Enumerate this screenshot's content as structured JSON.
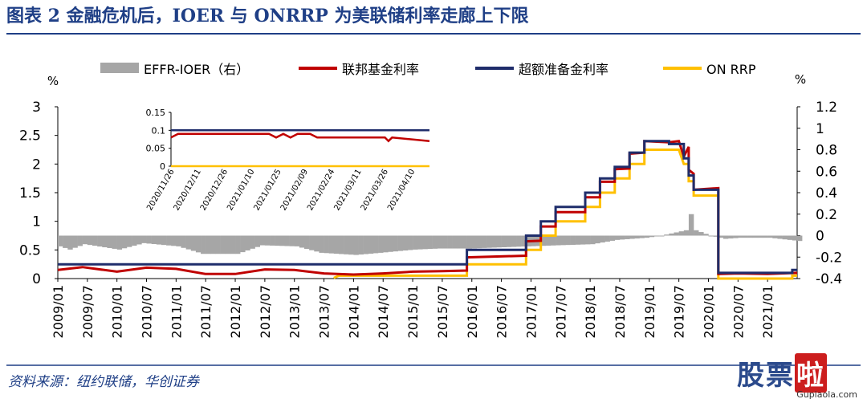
{
  "figure": {
    "title": "图表 2   金融危机后，IOER 与 ONRRP 为美联储利率走廊上下限",
    "source": "资料来源：纽约联储，华创证券",
    "watermark": {
      "cn_part1": "股票",
      "cn_part2": "啦",
      "en": "Gupiaola.com"
    },
    "colors": {
      "title": "#1f3f86",
      "rule": "#1f3f86"
    }
  },
  "chart_data": [
    {
      "id": "main",
      "type": "line",
      "left_unit": "%",
      "right_unit": "%",
      "left_ylim": [
        0,
        3
      ],
      "left_yticks": [
        "0",
        "0.5",
        "1",
        "1.5",
        "2",
        "2.5",
        "3"
      ],
      "right_ylim": [
        -0.4,
        1.2
      ],
      "right_yticks": [
        "-0.4",
        "-0.2",
        "0",
        "0.2",
        "0.4",
        "0.6",
        "0.8",
        "1",
        "1.2"
      ],
      "x_range": [
        "2009-01",
        "2021-07"
      ],
      "x_ticks": [
        "2009/01",
        "2009/07",
        "2010/01",
        "2010/07",
        "2011/01",
        "2011/07",
        "2012/01",
        "2012/07",
        "2013/01",
        "2013/07",
        "2014/01",
        "2014/07",
        "2015/01",
        "2015/07",
        "2016/01",
        "2016/07",
        "2017/01",
        "2017/07",
        "2018/01",
        "2018/07",
        "2019/01",
        "2019/07",
        "2020/01",
        "2020/07",
        "2021/01"
      ],
      "legend": [
        {
          "label": "EFFR-IOER（右）",
          "color": "#a6a6a6",
          "kind": "bar"
        },
        {
          "label": "联邦基金利率",
          "color": "#c00000",
          "kind": "line"
        },
        {
          "label": "超额准备金利率",
          "color": "#1f2d6b",
          "kind": "line"
        },
        {
          "label": "ON RRP",
          "color": "#ffc000",
          "kind": "line"
        }
      ],
      "series": [
        {
          "name": "超额准备金利率",
          "axis": "left",
          "points": [
            [
              "2009-01",
              0.25
            ],
            [
              "2015-12",
              0.25
            ],
            [
              "2015-12",
              0.5
            ],
            [
              "2016-12",
              0.5
            ],
            [
              "2016-12",
              0.75
            ],
            [
              "2017-03",
              0.75
            ],
            [
              "2017-03",
              1.0
            ],
            [
              "2017-06",
              1.0
            ],
            [
              "2017-06",
              1.25
            ],
            [
              "2017-12",
              1.25
            ],
            [
              "2017-12",
              1.5
            ],
            [
              "2018-03",
              1.5
            ],
            [
              "2018-03",
              1.75
            ],
            [
              "2018-06",
              1.75
            ],
            [
              "2018-06",
              1.95
            ],
            [
              "2018-09",
              1.95
            ],
            [
              "2018-09",
              2.2
            ],
            [
              "2018-12",
              2.2
            ],
            [
              "2018-12",
              2.4
            ],
            [
              "2019-05",
              2.4
            ],
            [
              "2019-05",
              2.35
            ],
            [
              "2019-08",
              2.35
            ],
            [
              "2019-08",
              2.1
            ],
            [
              "2019-09",
              2.1
            ],
            [
              "2019-09",
              1.8
            ],
            [
              "2019-10",
              1.8
            ],
            [
              "2019-10",
              1.55
            ],
            [
              "2020-03",
              1.55
            ],
            [
              "2020-03",
              1.1
            ],
            [
              "2020-03",
              0.1
            ],
            [
              "2021-06",
              0.1
            ],
            [
              "2021-06",
              0.15
            ],
            [
              "2021-07",
              0.15
            ]
          ]
        },
        {
          "name": "联邦基金利率",
          "axis": "left",
          "points": [
            [
              "2009-01",
              0.15
            ],
            [
              "2009-06",
              0.2
            ],
            [
              "2010-01",
              0.12
            ],
            [
              "2010-07",
              0.19
            ],
            [
              "2011-01",
              0.17
            ],
            [
              "2011-07",
              0.08
            ],
            [
              "2012-01",
              0.08
            ],
            [
              "2012-07",
              0.16
            ],
            [
              "2013-01",
              0.15
            ],
            [
              "2013-07",
              0.09
            ],
            [
              "2014-01",
              0.07
            ],
            [
              "2014-07",
              0.09
            ],
            [
              "2015-01",
              0.12
            ],
            [
              "2015-07",
              0.13
            ],
            [
              "2015-12",
              0.14
            ],
            [
              "2015-12",
              0.37
            ],
            [
              "2016-12",
              0.4
            ],
            [
              "2016-12",
              0.65
            ],
            [
              "2017-03",
              0.66
            ],
            [
              "2017-03",
              0.91
            ],
            [
              "2017-06",
              0.91
            ],
            [
              "2017-06",
              1.16
            ],
            [
              "2017-12",
              1.16
            ],
            [
              "2017-12",
              1.42
            ],
            [
              "2018-03",
              1.42
            ],
            [
              "2018-03",
              1.69
            ],
            [
              "2018-06",
              1.69
            ],
            [
              "2018-06",
              1.91
            ],
            [
              "2018-09",
              1.92
            ],
            [
              "2018-09",
              2.18
            ],
            [
              "2018-12",
              2.2
            ],
            [
              "2018-12",
              2.4
            ],
            [
              "2019-05",
              2.38
            ],
            [
              "2019-07",
              2.4
            ],
            [
              "2019-08",
              2.13
            ],
            [
              "2019-09",
              2.3
            ],
            [
              "2019-09",
              1.9
            ],
            [
              "2019-10",
              1.83
            ],
            [
              "2019-10",
              1.55
            ],
            [
              "2020-03",
              1.58
            ],
            [
              "2020-03",
              1.1
            ],
            [
              "2020-03",
              0.65
            ],
            [
              "2020-03",
              0.08
            ],
            [
              "2020-07",
              0.09
            ],
            [
              "2021-01",
              0.08
            ],
            [
              "2021-07",
              0.1
            ]
          ]
        },
        {
          "name": "ON RRP",
          "axis": "left",
          "points": [
            [
              "2013-09",
              0.01
            ],
            [
              "2013-10",
              0.05
            ],
            [
              "2014-06",
              0.05
            ],
            [
              "2015-06",
              0.05
            ],
            [
              "2015-12",
              0.05
            ],
            [
              "2015-12",
              0.25
            ],
            [
              "2016-12",
              0.25
            ],
            [
              "2016-12",
              0.5
            ],
            [
              "2017-03",
              0.5
            ],
            [
              "2017-03",
              0.75
            ],
            [
              "2017-06",
              0.75
            ],
            [
              "2017-06",
              1.0
            ],
            [
              "2017-12",
              1.0
            ],
            [
              "2017-12",
              1.25
            ],
            [
              "2018-03",
              1.25
            ],
            [
              "2018-03",
              1.5
            ],
            [
              "2018-06",
              1.5
            ],
            [
              "2018-06",
              1.75
            ],
            [
              "2018-09",
              1.75
            ],
            [
              "2018-09",
              2.0
            ],
            [
              "2018-12",
              2.0
            ],
            [
              "2018-12",
              2.25
            ],
            [
              "2019-06",
              2.25
            ],
            [
              "2019-07",
              2.25
            ],
            [
              "2019-08",
              2.0
            ],
            [
              "2019-09",
              2.0
            ],
            [
              "2019-09",
              1.7
            ],
            [
              "2019-10",
              1.7
            ],
            [
              "2019-10",
              1.45
            ],
            [
              "2020-03",
              1.45
            ],
            [
              "2020-03",
              1.0
            ],
            [
              "2020-03",
              0.0
            ],
            [
              "2021-06",
              0.0
            ],
            [
              "2021-06",
              0.05
            ],
            [
              "2021-07",
              0.05
            ]
          ]
        },
        {
          "name": "EFFR-IOER（右）",
          "axis": "right",
          "kind": "bar",
          "points": [
            [
              "2009-01",
              -0.1
            ],
            [
              "2009-03",
              -0.13
            ],
            [
              "2009-06",
              -0.08
            ],
            [
              "2010-01",
              -0.13
            ],
            [
              "2010-06",
              -0.07
            ],
            [
              "2011-01",
              -0.1
            ],
            [
              "2011-06",
              -0.17
            ],
            [
              "2012-01",
              -0.17
            ],
            [
              "2012-06",
              -0.09
            ],
            [
              "2013-01",
              -0.1
            ],
            [
              "2013-06",
              -0.16
            ],
            [
              "2014-01",
              -0.18
            ],
            [
              "2014-06",
              -0.16
            ],
            [
              "2015-01",
              -0.13
            ],
            [
              "2015-06",
              -0.12
            ],
            [
              "2015-12",
              -0.12
            ],
            [
              "2016-12",
              -0.1
            ],
            [
              "2017-06",
              -0.09
            ],
            [
              "2018-01",
              -0.08
            ],
            [
              "2018-06",
              -0.04
            ],
            [
              "2018-12",
              -0.02
            ],
            [
              "2019-03",
              0.0
            ],
            [
              "2019-06",
              0.03
            ],
            [
              "2019-08",
              0.05
            ],
            [
              "2019-09",
              0.2
            ],
            [
              "2019-10",
              0.05
            ],
            [
              "2020-01",
              0.0
            ],
            [
              "2020-03",
              -0.02
            ],
            [
              "2020-04",
              -0.03
            ],
            [
              "2020-07",
              -0.02
            ],
            [
              "2021-01",
              -0.02
            ],
            [
              "2021-07",
              -0.05
            ]
          ]
        }
      ]
    },
    {
      "id": "inset",
      "type": "line",
      "ylim": [
        0,
        0.15
      ],
      "yticks": [
        "0",
        "0.05",
        "0.1",
        "0.15"
      ],
      "x_range": [
        "2020-11-26",
        "2021-04-20"
      ],
      "x_ticks": [
        "2020/11/26",
        "2020/12/11",
        "2020/12/26",
        "2021/01/10",
        "2021/01/25",
        "2021/02/09",
        "2021/02/24",
        "2021/03/11",
        "2021/03/26",
        "2021/04/10"
      ],
      "series": [
        {
          "name": "超额准备金利率",
          "points": [
            [
              "2020-11-26",
              0.1
            ],
            [
              "2021-04-20",
              0.1
            ]
          ]
        },
        {
          "name": "联邦基金利率",
          "points": [
            [
              "2020-11-26",
              0.08
            ],
            [
              "2020-11-30",
              0.09
            ],
            [
              "2021-01-20",
              0.09
            ],
            [
              "2021-01-24",
              0.08
            ],
            [
              "2021-01-28",
              0.09
            ],
            [
              "2021-02-01",
              0.08
            ],
            [
              "2021-02-05",
              0.09
            ],
            [
              "2021-02-12",
              0.09
            ],
            [
              "2021-02-16",
              0.08
            ],
            [
              "2021-02-22",
              0.08
            ],
            [
              "2021-03-26",
              0.08
            ],
            [
              "2021-03-28",
              0.07
            ],
            [
              "2021-03-30",
              0.08
            ],
            [
              "2021-04-20",
              0.07
            ]
          ]
        },
        {
          "name": "ON RRP",
          "points": [
            [
              "2020-11-26",
              0.0
            ],
            [
              "2021-04-20",
              0.0
            ]
          ]
        }
      ]
    }
  ]
}
